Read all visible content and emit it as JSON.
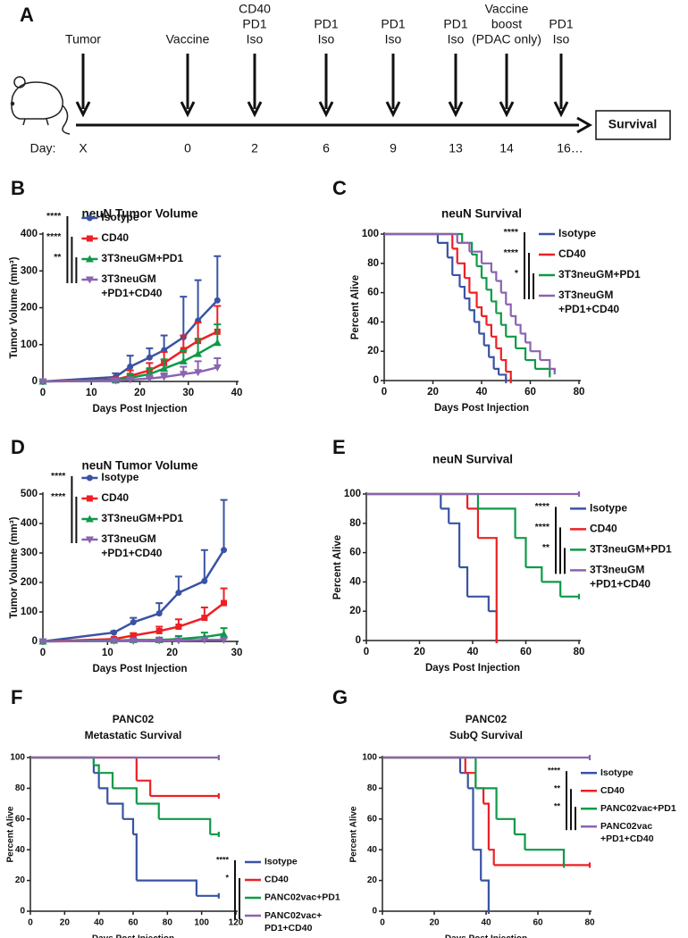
{
  "timeline": {
    "panel": "A",
    "day_label": "Day:",
    "end_label": "Survival",
    "events": [
      {
        "label": [
          "Tumor"
        ],
        "day": "X"
      },
      {
        "label": [
          "Vaccine"
        ],
        "day": "0"
      },
      {
        "label": [
          "CD40",
          "PD1",
          "Iso"
        ],
        "day": "2"
      },
      {
        "label": [
          "PD1",
          "Iso"
        ],
        "day": "6"
      },
      {
        "label": [
          "PD1",
          "Iso"
        ],
        "day": "9"
      },
      {
        "label": [
          "PD1",
          "Iso"
        ],
        "day": "13"
      },
      {
        "label": [
          "Vaccine",
          "boost",
          "(PDAC only)"
        ],
        "day": "14"
      },
      {
        "label": [
          "PD1",
          "Iso"
        ],
        "day": "16…"
      }
    ]
  },
  "chart_data": [
    {
      "panel": "B",
      "type": "line",
      "title": "neuN Tumor Volume",
      "xlabel": "Days Post Injection",
      "ylabel": "Tumor Volume (mm³)",
      "xlim": [
        0,
        40
      ],
      "xticks": [
        0,
        10,
        20,
        30,
        40
      ],
      "ylim": [
        0,
        400
      ],
      "yticks": [
        0,
        100,
        200,
        300,
        400
      ],
      "legend": "upper left",
      "significance": [
        "****",
        "****",
        "**"
      ],
      "series": [
        {
          "name": "Isotype",
          "color": "#3953a4",
          "marker": "circle",
          "x": [
            0,
            15,
            18,
            22,
            25,
            29,
            32,
            36
          ],
          "values": [
            0,
            12,
            40,
            65,
            85,
            120,
            165,
            220
          ],
          "errors": [
            2,
            10,
            30,
            25,
            40,
            110,
            110,
            120
          ]
        },
        {
          "name": "CD40",
          "color": "#ed2024",
          "marker": "square",
          "x": [
            0,
            15,
            18,
            22,
            25,
            29,
            32,
            36
          ],
          "values": [
            0,
            5,
            15,
            30,
            50,
            85,
            110,
            135
          ],
          "errors": [
            1,
            5,
            15,
            20,
            30,
            40,
            50,
            70
          ]
        },
        {
          "name": "3T3neuGM+PD1",
          "color": "#0e9a48",
          "marker": "triangle-up",
          "x": [
            0,
            15,
            18,
            22,
            25,
            29,
            32,
            36
          ],
          "values": [
            0,
            3,
            10,
            20,
            35,
            55,
            75,
            105
          ],
          "errors": [
            1,
            4,
            10,
            15,
            25,
            30,
            40,
            50
          ]
        },
        {
          "name": "3T3neuGM +PD1+CD40",
          "color": "#8b63b0",
          "marker": "triangle-down",
          "x": [
            0,
            15,
            18,
            22,
            25,
            29,
            32,
            36
          ],
          "values": [
            0,
            2,
            5,
            8,
            12,
            20,
            25,
            38
          ],
          "errors": [
            1,
            2,
            5,
            8,
            10,
            20,
            30,
            25
          ]
        }
      ]
    },
    {
      "panel": "C",
      "type": "step",
      "title": "neuN Survival",
      "xlabel": "Days Post Injection",
      "ylabel": "Percent Alive",
      "xlim": [
        0,
        80
      ],
      "xticks": [
        0,
        20,
        40,
        60,
        80
      ],
      "ylim": [
        0,
        100
      ],
      "yticks": [
        0,
        20,
        40,
        60,
        80,
        100
      ],
      "legend": "upper right",
      "significance": [
        "****",
        "****",
        "*"
      ],
      "series": [
        {
          "name": "Isotype",
          "color": "#3953a4",
          "x": [
            0,
            22,
            26,
            28,
            31,
            33,
            35,
            37,
            39,
            41,
            43,
            45,
            47,
            50
          ],
          "values": [
            100,
            94,
            84,
            72,
            64,
            56,
            48,
            40,
            32,
            24,
            16,
            8,
            4,
            0
          ]
        },
        {
          "name": "CD40",
          "color": "#ed2024",
          "x": [
            0,
            28,
            30,
            33,
            35,
            38,
            40,
            42,
            44,
            46,
            48,
            50,
            52
          ],
          "values": [
            100,
            90,
            80,
            70,
            60,
            50,
            44,
            38,
            30,
            22,
            14,
            6,
            0
          ]
        },
        {
          "name": "3T3neuGM+PD1",
          "color": "#0e9a48",
          "x": [
            0,
            32,
            36,
            38,
            40,
            42,
            44,
            46,
            48,
            50,
            54,
            58,
            62,
            68
          ],
          "values": [
            100,
            94,
            86,
            78,
            70,
            62,
            54,
            46,
            38,
            30,
            22,
            14,
            8,
            4
          ]
        },
        {
          "name": "3T3neuGM +PD1+CD40",
          "color": "#8b63b0",
          "x": [
            0,
            30,
            35,
            40,
            44,
            46,
            48,
            50,
            52,
            54,
            56,
            58,
            60,
            64,
            68,
            70
          ],
          "values": [
            100,
            94,
            88,
            80,
            74,
            68,
            60,
            52,
            44,
            38,
            32,
            26,
            20,
            14,
            8,
            6
          ]
        }
      ]
    },
    {
      "panel": "D",
      "type": "line",
      "title": "neuN Tumor Volume",
      "xlabel": "Days Post Injection",
      "ylabel": "Tumor Volume (mm³)",
      "xlim": [
        0,
        30
      ],
      "xticks": [
        0,
        10,
        20,
        30
      ],
      "ylim": [
        0,
        500
      ],
      "yticks": [
        0,
        100,
        200,
        300,
        400,
        500
      ],
      "legend": "upper left",
      "significance": [
        "****",
        "****"
      ],
      "series": [
        {
          "name": "Isotype",
          "color": "#3953a4",
          "marker": "circle",
          "x": [
            0,
            11,
            14,
            18,
            21,
            25,
            28
          ],
          "values": [
            0,
            30,
            65,
            95,
            165,
            205,
            310
          ],
          "errors": [
            2,
            5,
            15,
            35,
            55,
            105,
            170
          ]
        },
        {
          "name": "CD40",
          "color": "#ed2024",
          "marker": "square",
          "x": [
            0,
            11,
            14,
            18,
            21,
            25,
            28
          ],
          "values": [
            0,
            8,
            20,
            35,
            50,
            80,
            130
          ],
          "errors": [
            1,
            3,
            8,
            15,
            25,
            35,
            50
          ]
        },
        {
          "name": "3T3neuGM+PD1",
          "color": "#0e9a48",
          "marker": "triangle-up",
          "x": [
            0,
            11,
            14,
            18,
            21,
            25,
            28
          ],
          "values": [
            0,
            3,
            5,
            5,
            8,
            15,
            25
          ],
          "errors": [
            1,
            3,
            5,
            8,
            10,
            15,
            20
          ]
        },
        {
          "name": "3T3neuGM +PD1+CD40",
          "color": "#8b63b0",
          "marker": "triangle-down",
          "x": [
            0,
            11,
            14,
            18,
            21,
            25,
            28
          ],
          "values": [
            0,
            2,
            2,
            3,
            3,
            5,
            5
          ],
          "errors": [
            1,
            2,
            2,
            3,
            3,
            5,
            5
          ]
        }
      ]
    },
    {
      "panel": "E",
      "type": "step",
      "title": "neuN Survival",
      "xlabel": "Days Post Injection",
      "ylabel": "Percent Alive",
      "xlim": [
        0,
        80
      ],
      "xticks": [
        0,
        20,
        40,
        60,
        80
      ],
      "ylim": [
        0,
        100
      ],
      "yticks": [
        0,
        20,
        40,
        60,
        80,
        100
      ],
      "legend": "right",
      "significance": [
        "****",
        "****",
        "**"
      ],
      "series": [
        {
          "name": "Isotype",
          "color": "#3953a4",
          "x": [
            0,
            28,
            31,
            35,
            38,
            46,
            49
          ],
          "values": [
            100,
            90,
            80,
            50,
            30,
            20,
            0
          ]
        },
        {
          "name": "CD40",
          "color": "#ed2024",
          "x": [
            0,
            38,
            42,
            49
          ],
          "values": [
            100,
            90,
            70,
            0
          ]
        },
        {
          "name": "3T3neuGM+PD1",
          "color": "#0e9a48",
          "x": [
            0,
            42,
            56,
            60,
            66,
            73,
            80
          ],
          "values": [
            100,
            90,
            70,
            50,
            40,
            30,
            30
          ]
        },
        {
          "name": "3T3neuGM +PD1+CD40",
          "color": "#8b63b0",
          "x": [
            0,
            80
          ],
          "values": [
            100,
            100
          ]
        }
      ]
    },
    {
      "panel": "F",
      "type": "step",
      "title": "PANC02",
      "subtitle": "Metastatic Survival",
      "xlabel": "Days Post Injection",
      "ylabel": "Percent Alive",
      "xlim": [
        0,
        120
      ],
      "xticks": [
        0,
        20,
        40,
        60,
        80,
        100,
        120
      ],
      "ylim": [
        0,
        100
      ],
      "yticks": [
        0,
        20,
        40,
        60,
        80,
        100
      ],
      "legend": "lower right",
      "significance": [
        "****",
        "*"
      ],
      "series": [
        {
          "name": "Isotype",
          "color": "#3953a4",
          "x": [
            0,
            37,
            40,
            45,
            54,
            60,
            62,
            97,
            110
          ],
          "values": [
            100,
            90,
            80,
            70,
            60,
            50,
            20,
            10,
            10
          ]
        },
        {
          "name": "CD40",
          "color": "#ed2024",
          "x": [
            0,
            62,
            70,
            110
          ],
          "values": [
            100,
            85,
            75,
            75
          ]
        },
        {
          "name": "PANC02vac+PD1",
          "color": "#0e9a48",
          "x": [
            0,
            37,
            40,
            48,
            62,
            75,
            105,
            110
          ],
          "values": [
            100,
            95,
            90,
            80,
            70,
            60,
            50,
            50
          ]
        },
        {
          "name": "PANC02vac+ PD1+CD40",
          "color": "#8b63b0",
          "x": [
            0,
            110
          ],
          "values": [
            100,
            100
          ]
        }
      ]
    },
    {
      "panel": "G",
      "type": "step",
      "title": "PANC02",
      "subtitle": "SubQ Survival",
      "xlabel": "Days Post Injection",
      "ylabel": "Percent Alive",
      "xlim": [
        0,
        80
      ],
      "xticks": [
        0,
        20,
        40,
        60,
        80
      ],
      "ylim": [
        0,
        100
      ],
      "yticks": [
        0,
        20,
        40,
        60,
        80,
        100
      ],
      "legend": "right",
      "significance": [
        "****",
        "**",
        "**"
      ],
      "series": [
        {
          "name": "Isotype",
          "color": "#3953a4",
          "x": [
            0,
            30,
            33,
            35,
            38,
            41
          ],
          "values": [
            100,
            90,
            80,
            40,
            20,
            0
          ]
        },
        {
          "name": "CD40",
          "color": "#ed2024",
          "x": [
            0,
            32,
            36,
            39,
            41,
            43,
            80
          ],
          "values": [
            100,
            90,
            80,
            70,
            40,
            30,
            30
          ]
        },
        {
          "name": "PANC02vac+PD1",
          "color": "#0e9a48",
          "x": [
            0,
            36,
            44,
            51,
            55,
            70
          ],
          "values": [
            100,
            80,
            60,
            50,
            40,
            30
          ]
        },
        {
          "name": "PANC02vac +PD1+CD40",
          "color": "#8b63b0",
          "x": [
            0,
            80
          ],
          "values": [
            100,
            100
          ]
        }
      ]
    }
  ]
}
